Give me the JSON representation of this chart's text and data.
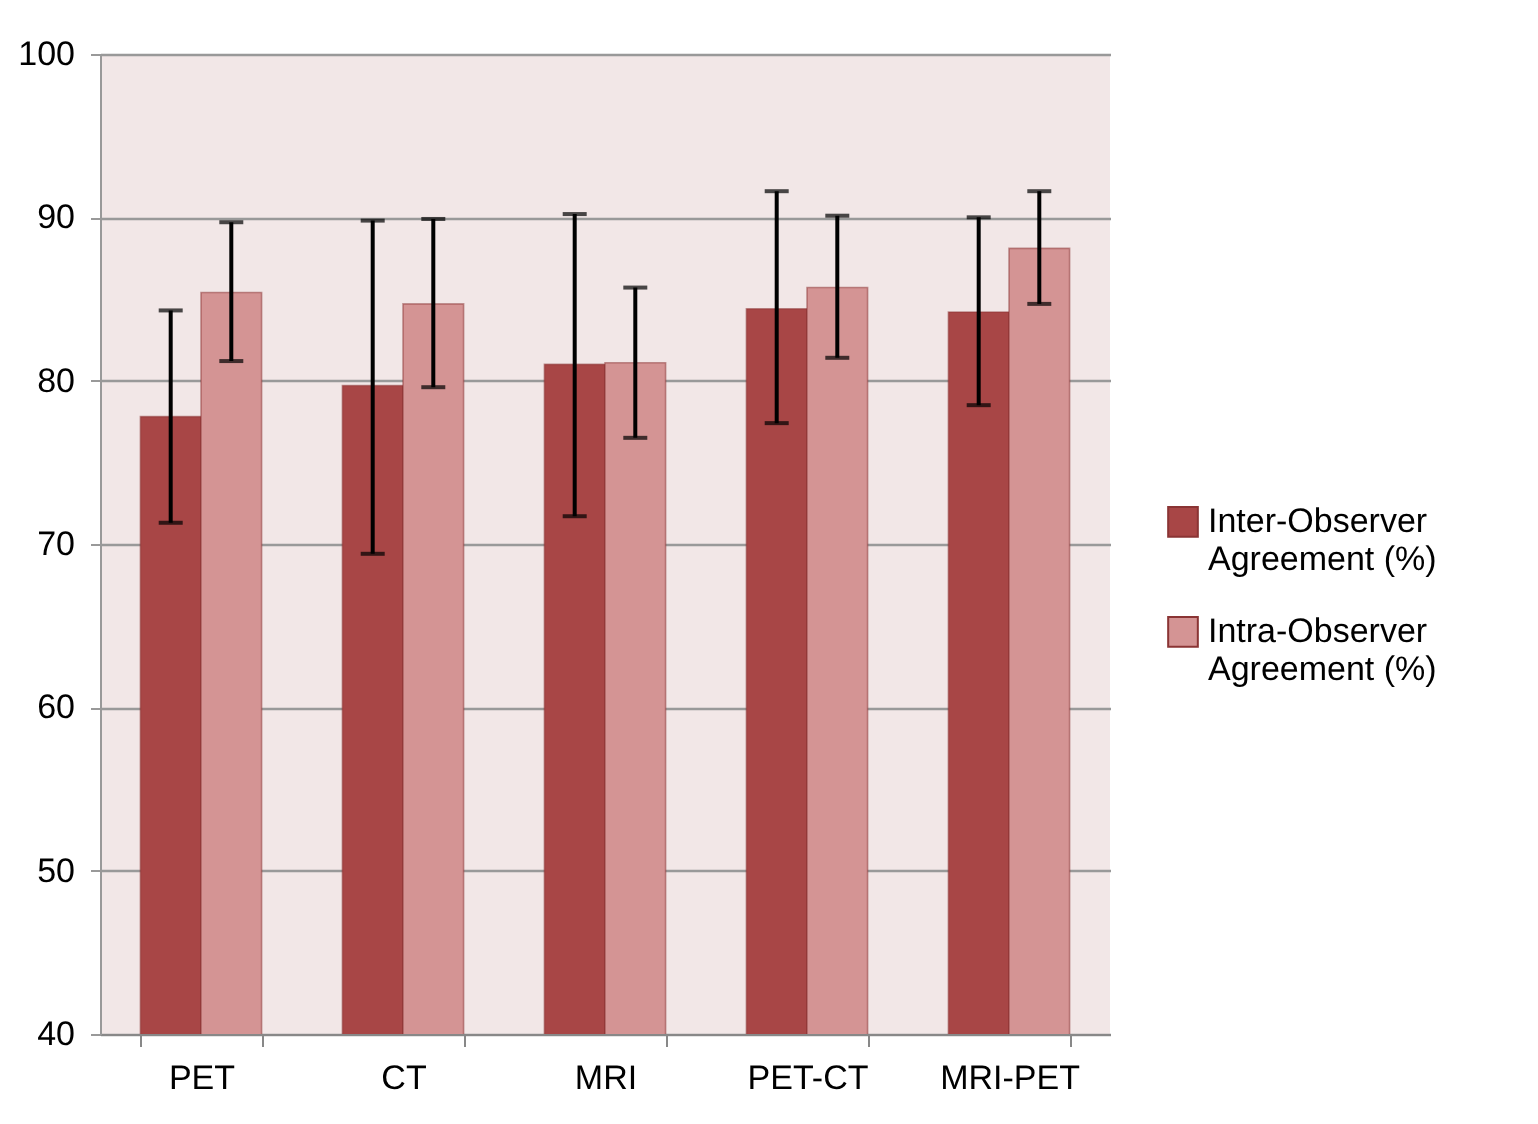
{
  "chart_data": {
    "type": "bar",
    "categories": [
      "PET",
      "CT",
      "MRI",
      "PET-CT",
      "MRI-PET"
    ],
    "series": [
      {
        "name": "Inter-Observer Agreement (%)",
        "color": "#a84646",
        "values": [
          77.8,
          79.7,
          81.0,
          84.4,
          84.2
        ],
        "errors": [
          [
            71.3,
            84.3
          ],
          [
            69.4,
            89.8
          ],
          [
            71.7,
            90.2
          ],
          [
            77.4,
            91.6
          ],
          [
            78.5,
            90.0
          ]
        ]
      },
      {
        "name": "Intra-Observer Agreement (%)",
        "color": "#d49494",
        "values": [
          85.4,
          84.7,
          81.1,
          85.7,
          88.1
        ],
        "errors": [
          [
            81.2,
            89.7
          ],
          [
            79.6,
            89.9
          ],
          [
            76.5,
            85.7
          ],
          [
            81.4,
            90.1
          ],
          [
            84.7,
            91.6
          ]
        ]
      }
    ],
    "ylim": [
      40,
      100
    ],
    "yticks": [
      40,
      50,
      60,
      70,
      80,
      90,
      100
    ],
    "grid": "y",
    "legend": "right"
  }
}
